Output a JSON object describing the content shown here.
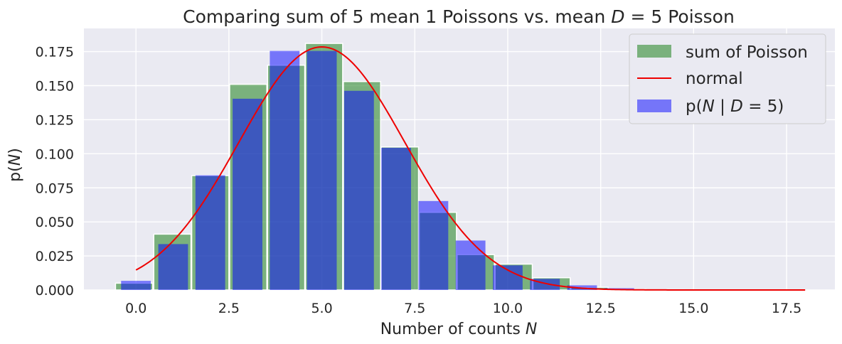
{
  "chart_data": {
    "type": "bar",
    "title_prefix": "Comparing sum of 5 mean 1 Poissons vs. mean ",
    "title_math_var": "D",
    "title_suffix": " = 5 Poisson",
    "xlabel_prefix": "Number of counts ",
    "xlabel_var": "N",
    "ylabel_prefix": "p(",
    "ylabel_var": "N",
    "ylabel_suffix": ")",
    "xlim": [
      -1.4,
      18.8
    ],
    "ylim": [
      0,
      0.192
    ],
    "xticks": [
      "0.0",
      "2.5",
      "5.0",
      "7.5",
      "10.0",
      "12.5",
      "15.0",
      "17.5"
    ],
    "xtick_values": [
      0,
      2.5,
      5,
      7.5,
      10,
      12.5,
      15,
      17.5
    ],
    "yticks": [
      "0.000",
      "0.025",
      "0.050",
      "0.075",
      "0.100",
      "0.125",
      "0.150",
      "0.175"
    ],
    "ytick_values": [
      0,
      0.025,
      0.05,
      0.075,
      0.1,
      0.125,
      0.15,
      0.175
    ],
    "grid": true,
    "legend_position": "top-right",
    "series": [
      {
        "name": "sum of Poisson",
        "kind": "hist",
        "color": "#2e8b2e",
        "x": [
          -0.05,
          0.98,
          2.0,
          3.02,
          4.04,
          5.06,
          6.08,
          7.1,
          8.12,
          9.14,
          10.16,
          11.18,
          12.2,
          13.22,
          14.24,
          15.26,
          16.28,
          17.3
        ],
        "values": [
          0.005,
          0.041,
          0.084,
          0.151,
          0.165,
          0.181,
          0.153,
          0.105,
          0.057,
          0.026,
          0.019,
          0.009,
          0.002,
          0.0005,
          0.0002,
          0.0001,
          0.0001,
          0.0001
        ]
      },
      {
        "name": "normal",
        "kind": "line",
        "color": "#ee0000",
        "mean": 5.0,
        "sd": 2.236,
        "x_range": [
          0,
          18
        ]
      },
      {
        "name_prefix": "p(",
        "name_var1": "N",
        "name_mid": " | ",
        "name_var2": "D",
        "name_suffix": " = 5)",
        "kind": "bar",
        "color": "#0000ff",
        "x": [
          0,
          1,
          2,
          3,
          4,
          5,
          6,
          7,
          8,
          9,
          10,
          11,
          12,
          13,
          14,
          15,
          16,
          17,
          18
        ],
        "values": [
          0.0067,
          0.0337,
          0.0842,
          0.1404,
          0.1755,
          0.1755,
          0.1462,
          0.1044,
          0.0653,
          0.0363,
          0.0181,
          0.0082,
          0.0034,
          0.0013,
          0.0005,
          0.0002,
          0.0001,
          0.0,
          0.0
        ]
      }
    ]
  }
}
